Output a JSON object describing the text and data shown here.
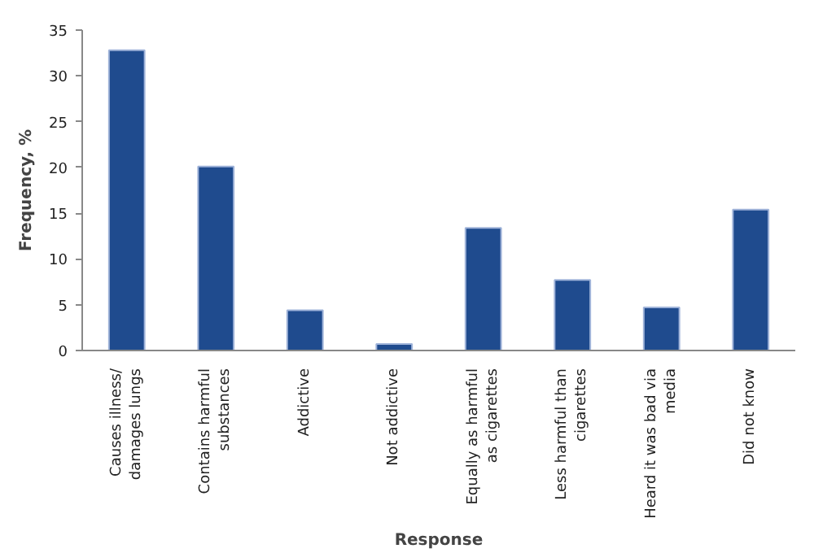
{
  "chart_data": {
    "type": "bar",
    "xlabel": "Response",
    "ylabel": "Frequency, %",
    "categories": [
      "Causes illness/\ndamages lungs",
      "Contains harmful\nsubstances",
      "Addictive",
      "Not addictive",
      "Equally as harmful\nas cigarettes",
      "Less harmful than\ncigarettes",
      "Heard it was bad via\nmedia",
      "Did not know"
    ],
    "values": [
      32.8,
      20.1,
      4.4,
      0.7,
      13.4,
      7.7,
      4.7,
      15.4
    ],
    "color": "#1f4b8e",
    "ylim": [
      0,
      35
    ],
    "yticks": [
      0,
      5,
      10,
      15,
      20,
      25,
      30,
      35
    ],
    "grid": false
  }
}
